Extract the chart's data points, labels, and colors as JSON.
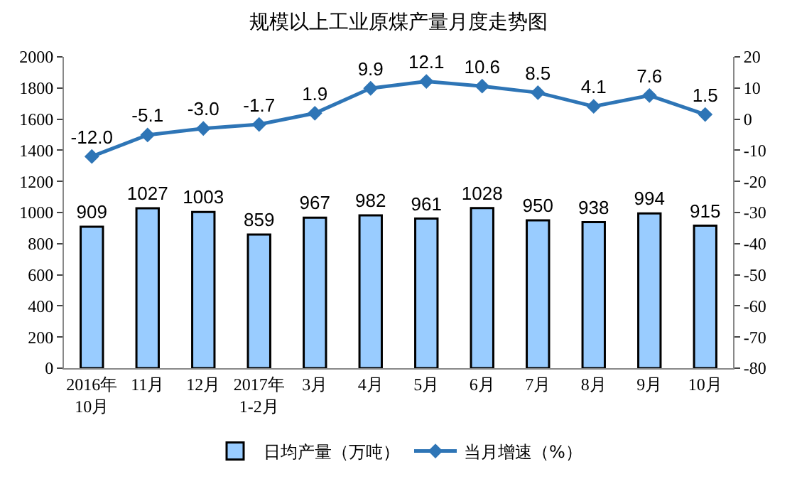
{
  "chart_data": {
    "type": "bar",
    "title": "规模以上工业原煤产量月度走势图",
    "categories": [
      "2016年\n10月",
      "11月",
      "12月",
      "2017年\n1-2月",
      "3月",
      "4月",
      "5月",
      "6月",
      "7月",
      "8月",
      "9月",
      "10月"
    ],
    "series": [
      {
        "name": "日均产量（万吨）",
        "color": "#99ccff",
        "values": [
          909,
          1027,
          1003,
          859,
          967,
          982,
          961,
          1028,
          950,
          938,
          994,
          915
        ]
      },
      {
        "name": "当月增速（%）",
        "type": "line",
        "axis": "y2",
        "color": "#2e75b6",
        "marker": "diamond",
        "values": [
          -12.0,
          -5.1,
          -3.0,
          -1.7,
          1.9,
          9.9,
          12.1,
          10.6,
          8.5,
          4.1,
          7.6,
          1.5
        ],
        "value_labels": [
          "-12.0",
          "-5.1",
          "-3.0",
          "-1.7",
          "1.9",
          "9.9",
          "12.1",
          "10.6",
          "8.5",
          "4.1",
          "7.6",
          "1.5"
        ]
      }
    ],
    "ylim": [
      0,
      2000
    ],
    "yticks": [
      0,
      200,
      400,
      600,
      800,
      1000,
      1200,
      1400,
      1600,
      1800,
      2000
    ],
    "y2lim": [
      -80,
      20
    ],
    "y2ticks": [
      -80,
      -70,
      -60,
      -50,
      -40,
      -30,
      -20,
      -10,
      0,
      10,
      20
    ],
    "data_labels": true,
    "legend": "bottom"
  }
}
